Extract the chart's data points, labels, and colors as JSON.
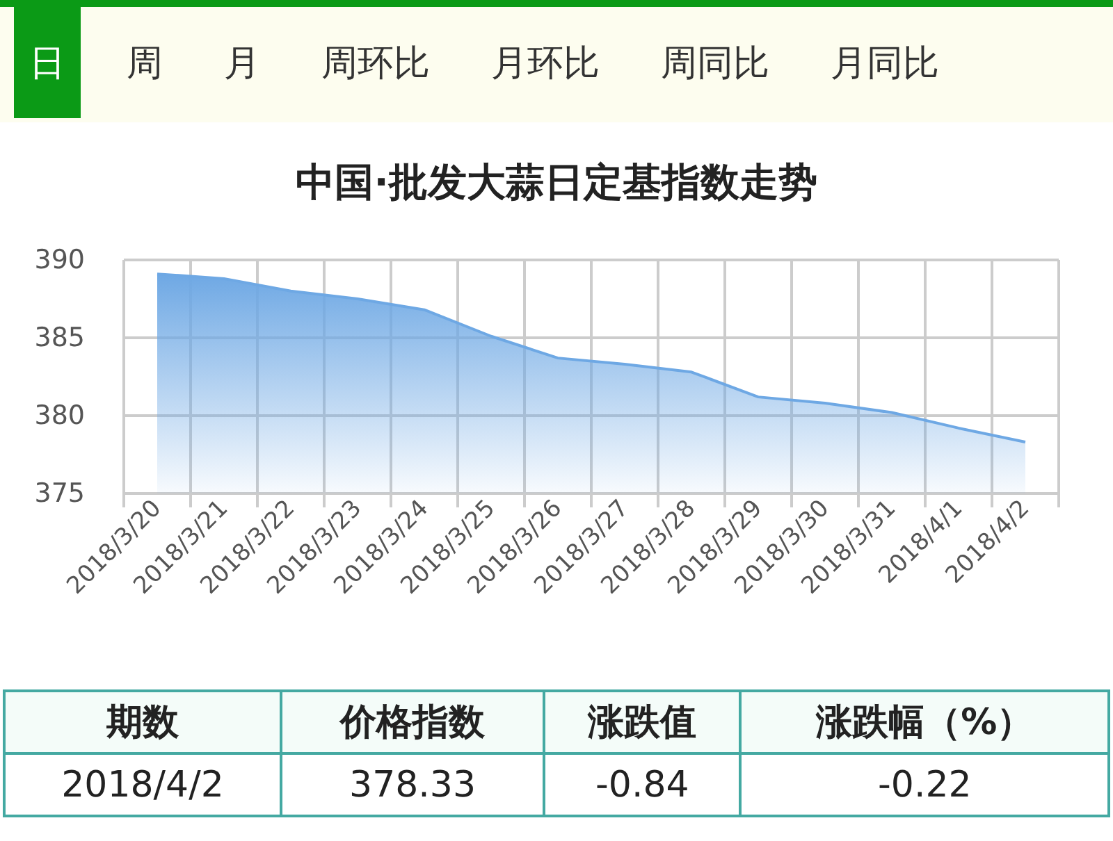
{
  "chart_data": [
    {
      "type": "other",
      "categories": [
        "日",
        "周",
        "月",
        "周环比",
        "月环比",
        "周同比",
        "月同比"
      ],
      "colors": [
        "#0b9a16",
        "#fdfdef",
        "#fdfdef",
        "#fdfdef",
        "#fdfdef",
        "#fdfdef",
        "#fdfdef"
      ]
    },
    {
      "type": "area",
      "title": "中国·批发大蒜日定基指数走势",
      "categories": [
        "2018/3/20",
        "2018/3/21",
        "2018/3/22",
        "2018/3/23",
        "2018/3/24",
        "2018/3/25",
        "2018/3/26",
        "2018/3/27",
        "2018/3/28",
        "2018/3/29",
        "2018/3/30",
        "2018/3/31",
        "2018/4/1",
        "2018/4/2"
      ],
      "values": [
        389.1,
        388.8,
        388.0,
        387.5,
        386.8,
        385.1,
        383.7,
        383.3,
        382.8,
        381.2,
        380.8,
        380.2,
        379.2,
        378.3
      ],
      "color": "#6ea8e4",
      "ylim": [
        375,
        390
      ],
      "yticks": [
        375,
        380,
        385,
        390
      ],
      "grid": true
    },
    {
      "type": "other",
      "categories": [
        "期数",
        "价格指数",
        "涨跌值",
        "涨跌幅（%）"
      ],
      "annotations": [
        "2018/4/2",
        "378.33",
        "-0.84",
        "-0.22"
      ]
    }
  ]
}
